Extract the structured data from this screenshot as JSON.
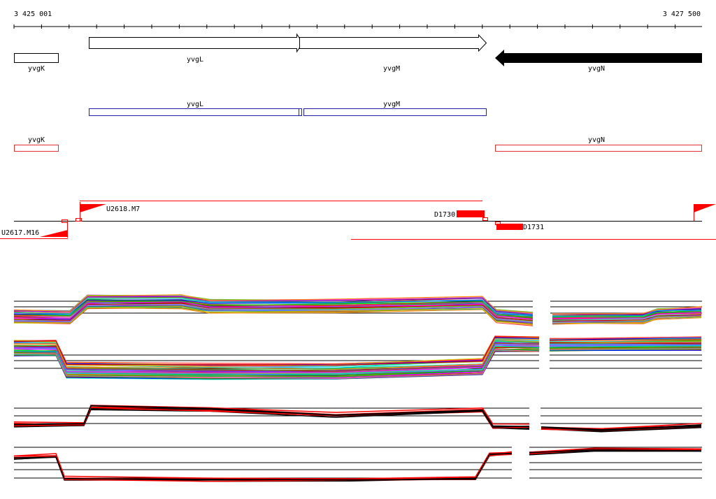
{
  "coordinates": {
    "start_label": "3 425 001",
    "end_label": "3 427 500"
  },
  "genes": [
    {
      "name": "yvgK",
      "strand": "none"
    },
    {
      "name": "yvgL",
      "strand": "+"
    },
    {
      "name": "yvgM",
      "strand": "+"
    },
    {
      "name": "yvgN",
      "strand": "-"
    }
  ],
  "transcript_track_plus": [
    {
      "label": "yvgL"
    },
    {
      "label": "yvgM"
    }
  ],
  "transcript_track_other": [
    {
      "label": "yvgK"
    },
    {
      "label": "yvgN"
    }
  ],
  "features": [
    {
      "label": "U2617.M16",
      "kind": "upshift"
    },
    {
      "label": "U2618.M7",
      "kind": "upshift"
    },
    {
      "label": "D1730",
      "kind": "downshift"
    },
    {
      "label": "D1731",
      "kind": "downshift"
    }
  ],
  "expression_panels": [
    {
      "name": "plus-strand-all-conditions",
      "style": "multicolor"
    },
    {
      "name": "minus-strand-all-conditions",
      "style": "multicolor"
    },
    {
      "name": "plus-strand-selected",
      "style": "red-black"
    },
    {
      "name": "minus-strand-selected",
      "style": "red-black"
    }
  ],
  "colors": {
    "gene_outline": "#000000",
    "gene_minus_fill": "#000000",
    "transcript_plus": "#1f1fa8",
    "transcript_other": "#e03030",
    "feature_red": "#ff0000",
    "highlight_red": "#ff0000"
  }
}
